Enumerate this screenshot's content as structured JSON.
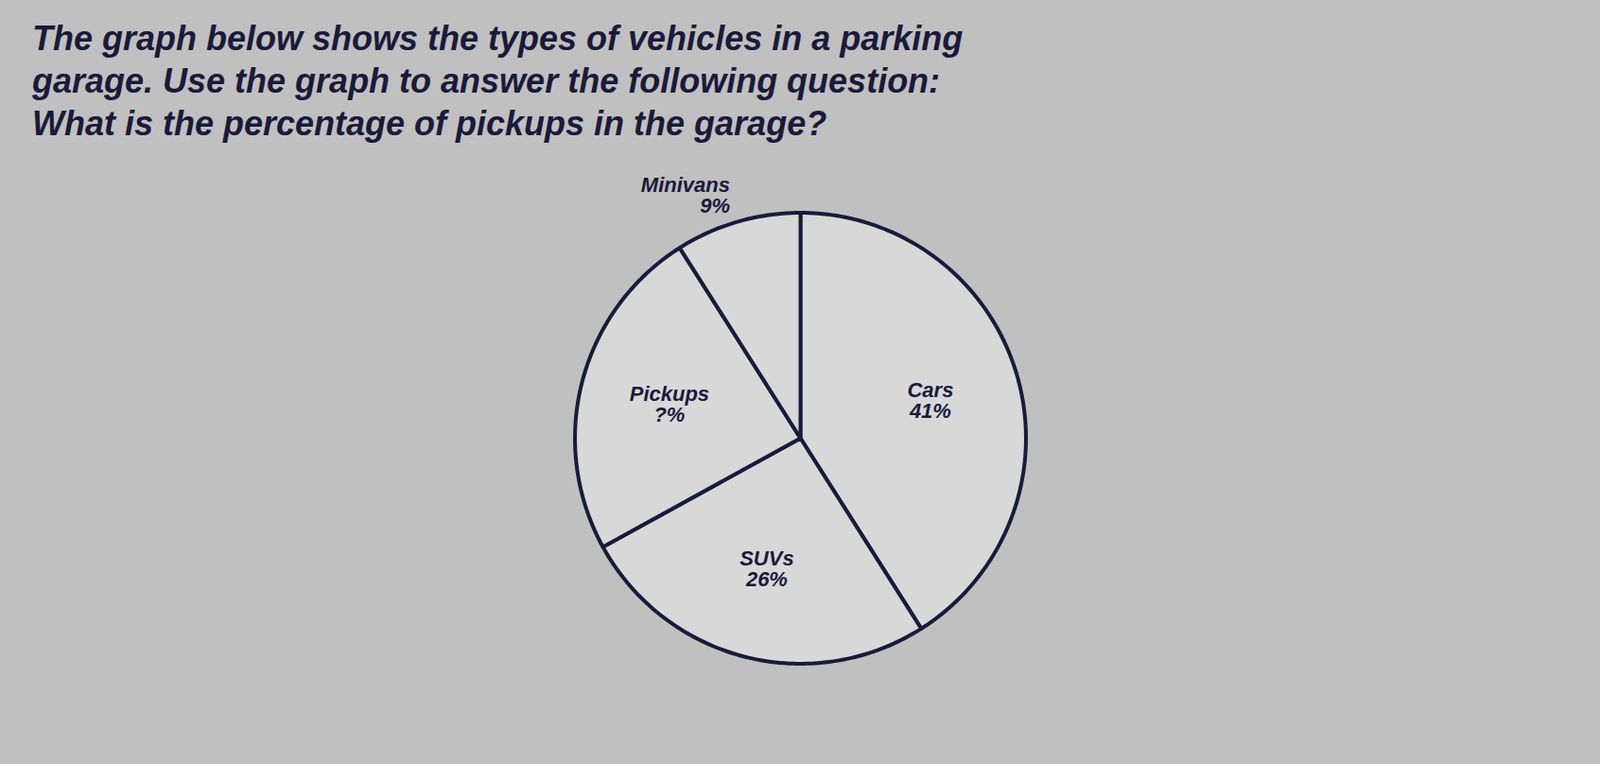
{
  "chart_data": {
    "type": "pie",
    "title": "The graph below shows the types of vehicles in a parking\ngarage. Use the graph to answer the following question:\nWhat is the percentage of pickups in the garage?",
    "categories": [
      "Cars",
      "SUVs",
      "Pickups",
      "Minivans"
    ],
    "values": [
      41,
      26,
      24,
      9
    ],
    "value_labels": [
      "41%",
      "26%",
      "?%",
      "9%"
    ],
    "data_labels": true,
    "colors": [
      "#d8d8d8",
      "#d8d8d8",
      "#d8d8d8",
      "#d8d8d8"
    ]
  }
}
